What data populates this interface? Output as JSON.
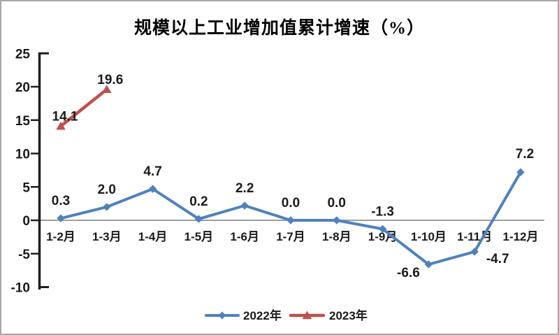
{
  "title": "规模以上工业增加值累计增速（%）",
  "colors": {
    "series_2022": "#4F81BD",
    "series_2023": "#C0504D",
    "axis": "#1f1f1f",
    "zero_line": "#9e9e9e",
    "text": "#1a1a1a",
    "frame_border": "#a8a8a8"
  },
  "legend": {
    "position": "bottom",
    "items": [
      {
        "label": "2022年",
        "color": "#4F81BD",
        "marker": "diamond"
      },
      {
        "label": "2023年",
        "color": "#C0504D",
        "marker": "triangle"
      }
    ]
  },
  "chart_data": {
    "type": "line",
    "title": "规模以上工业增加值累计增速（%）",
    "categories": [
      "1-2月",
      "1-3月",
      "1-4月",
      "1-5月",
      "1-6月",
      "1-7月",
      "1-8月",
      "1-9月",
      "1-10月",
      "1-11月",
      "1-12月"
    ],
    "series": [
      {
        "name": "2022年",
        "color": "#4F81BD",
        "marker": "diamond",
        "values": [
          0.3,
          2.0,
          4.7,
          0.2,
          2.2,
          0.0,
          0.0,
          -1.3,
          -6.6,
          -4.7,
          7.2
        ]
      },
      {
        "name": "2023年",
        "color": "#C0504D",
        "marker": "triangle",
        "values": [
          14.1,
          19.6
        ]
      }
    ],
    "data_labels": true,
    "label_decimals": 1,
    "xlabel": "",
    "ylabel": "",
    "ylim": [
      -10,
      25
    ],
    "y_ticks": [
      25,
      20,
      15,
      10,
      5,
      0,
      -5,
      -10
    ],
    "grid": "off",
    "legend_position": "bottom"
  }
}
